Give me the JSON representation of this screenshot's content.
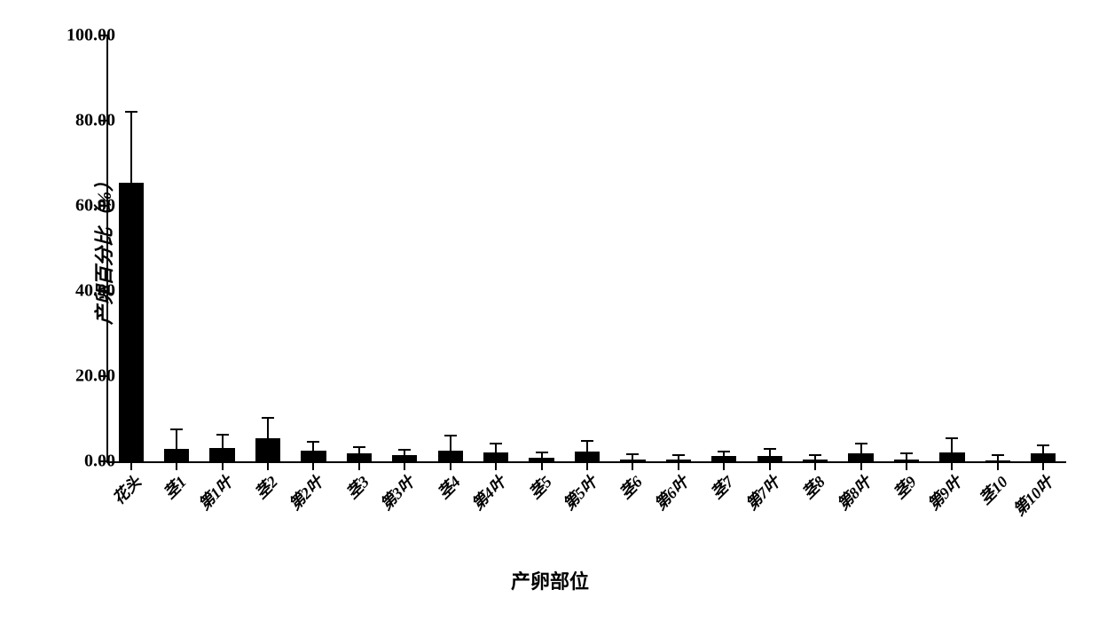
{
  "chart": {
    "type": "bar",
    "y_axis": {
      "title": "产卵百分比（%）",
      "min": 0,
      "max": 100,
      "ticks": [
        0,
        20,
        40,
        60,
        80,
        100
      ],
      "tick_labels": [
        "0.00",
        "20.00",
        "40.00",
        "60.00",
        "80.00",
        "100.00"
      ]
    },
    "x_axis": {
      "title": "产卵部位"
    },
    "categories": [
      "花头",
      "茎1",
      "第1叶",
      "茎2",
      "第2叶",
      "茎3",
      "第3叶",
      "茎4",
      "第4叶",
      "茎5",
      "第5叶",
      "茎6",
      "第6叶",
      "茎7",
      "第7叶",
      "茎8",
      "第8叶",
      "茎9",
      "第9叶",
      "茎10",
      "第10叶"
    ],
    "values": [
      65.5,
      3.0,
      3.2,
      5.5,
      2.5,
      1.8,
      1.5,
      2.5,
      2.0,
      0.8,
      2.2,
      0.5,
      0.5,
      1.2,
      1.2,
      0.5,
      1.8,
      0.4,
      2.0,
      0.3,
      1.8
    ],
    "errors": [
      16.5,
      4.5,
      3.0,
      4.8,
      2.0,
      1.5,
      1.2,
      3.5,
      2.2,
      1.2,
      2.5,
      1.2,
      1.0,
      1.0,
      1.8,
      1.0,
      2.3,
      1.5,
      3.5,
      1.2,
      2.0
    ],
    "bar_color": "#000000",
    "axis_color": "#000000",
    "background_color": "#ffffff",
    "bar_width_ratio": 0.55,
    "title_fontsize": 22,
    "tick_fontsize": 20,
    "category_fontsize": 18,
    "font_weight": "bold",
    "axis_line_width": 2.5
  }
}
